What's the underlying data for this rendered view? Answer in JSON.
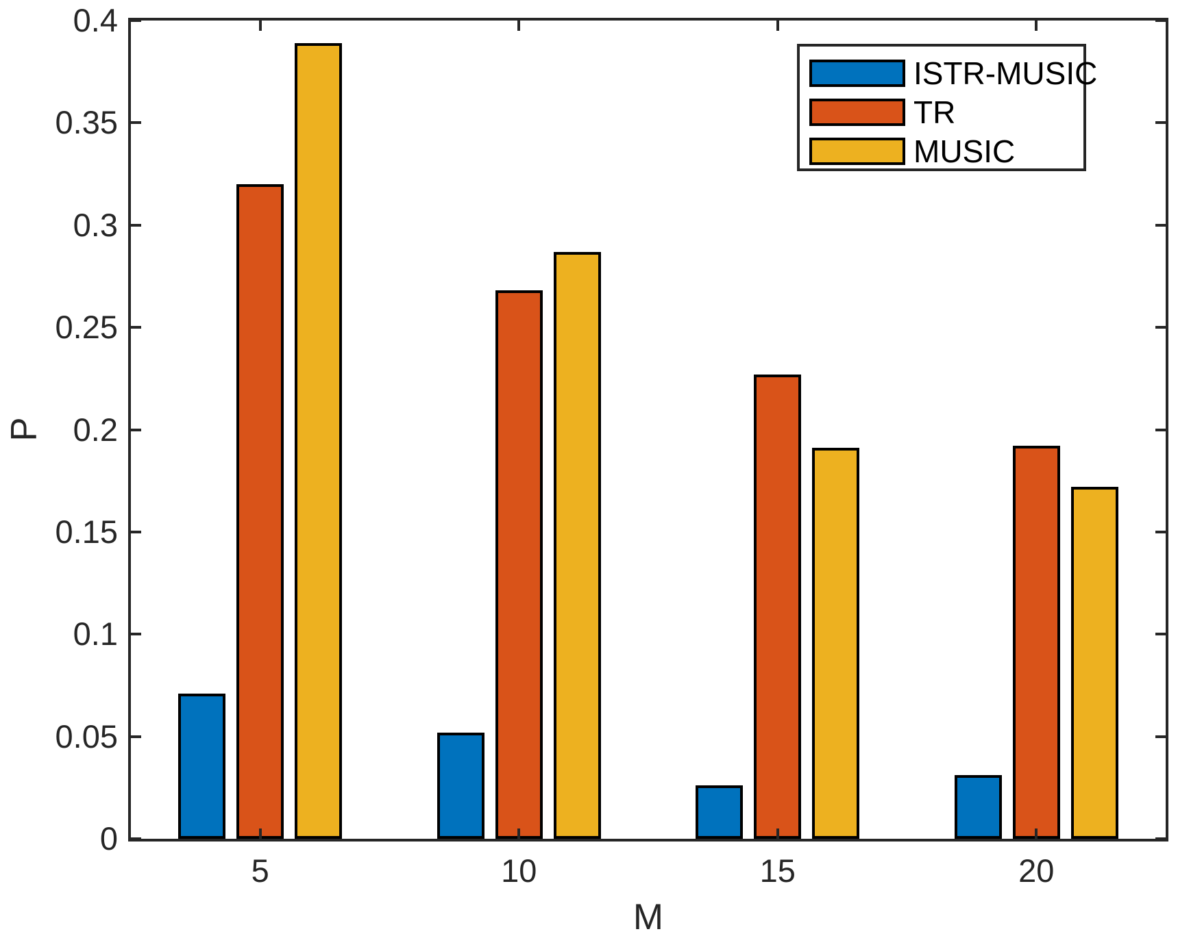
{
  "figure": {
    "background": "#ffffff",
    "axis_color": "#262626",
    "bar_edge_color": "#000000"
  },
  "axes": {
    "xlabel": "M",
    "ylabel": "P",
    "ytick_labels": [
      "0",
      "0.05",
      "0.1",
      "0.15",
      "0.2",
      "0.25",
      "0.3",
      "0.35",
      "0.4"
    ],
    "xtick_labels": [
      "5",
      "10",
      "15",
      "20"
    ]
  },
  "legend": {
    "entries": [
      {
        "label": "ISTR-MUSIC",
        "color": "#0072BD"
      },
      {
        "label": "TR",
        "color": "#D95319"
      },
      {
        "label": "MUSIC",
        "color": "#EDB120"
      }
    ]
  },
  "chart_data": {
    "type": "bar",
    "title": "",
    "xlabel": "M",
    "ylabel": "P",
    "categories": [
      5,
      10,
      15,
      20
    ],
    "series": [
      {
        "name": "ISTR-MUSIC",
        "color": "#0072BD",
        "values": [
          0.071,
          0.052,
          0.026,
          0.031
        ]
      },
      {
        "name": "TR",
        "color": "#D95319",
        "values": [
          0.32,
          0.268,
          0.227,
          0.192
        ]
      },
      {
        "name": "MUSIC",
        "color": "#EDB120",
        "values": [
          0.389,
          0.287,
          0.191,
          0.172
        ]
      }
    ],
    "ylim": [
      0,
      0.4
    ],
    "ytick_step": 0.05,
    "xticks": [
      5,
      10,
      15,
      20
    ],
    "grid": false,
    "legend_position": "top-right",
    "bar_group_layout": "grouped"
  }
}
